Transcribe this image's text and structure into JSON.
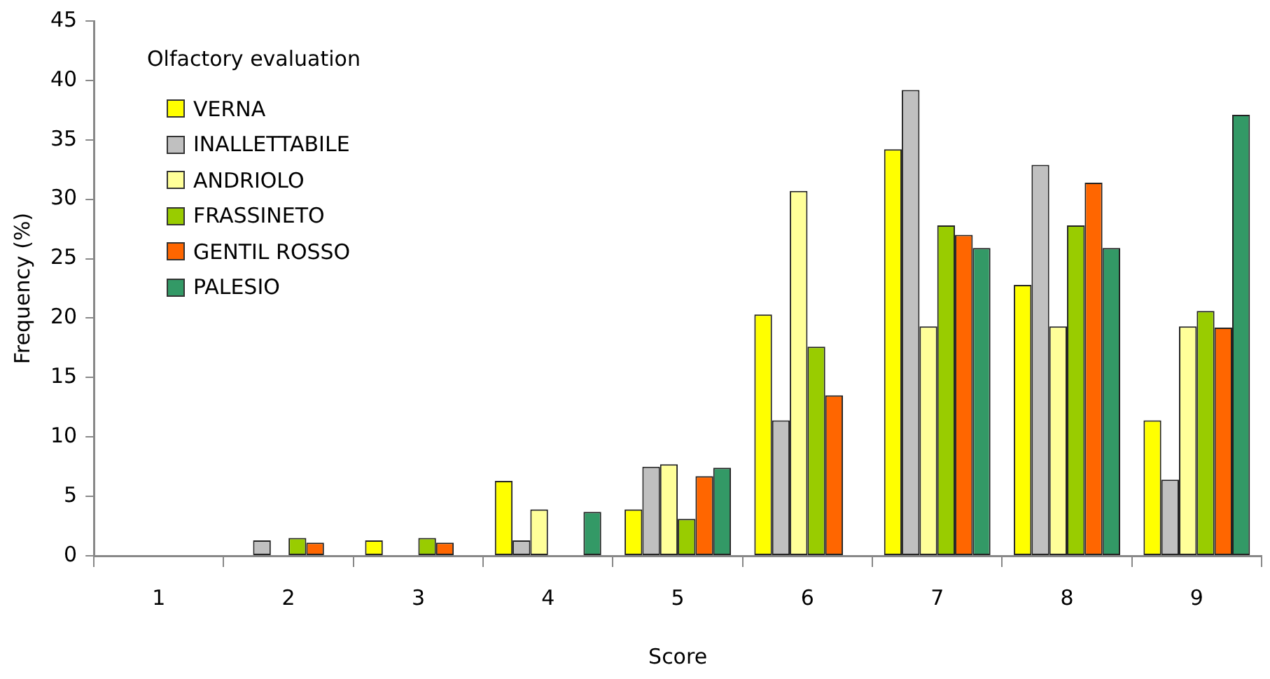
{
  "chart_data": {
    "type": "bar",
    "xlabel": "Score",
    "ylabel": "Frequency (%)",
    "legend_title": "Olfactory evaluation",
    "legend": "top left",
    "grid": false,
    "categories": [
      "1",
      "2",
      "3",
      "4",
      "5",
      "6",
      "7",
      "8",
      "9"
    ],
    "ylim": [
      0,
      45
    ],
    "yticks": [
      0,
      5,
      10,
      15,
      20,
      25,
      30,
      35,
      40,
      45
    ],
    "series": [
      {
        "name": "VERNA",
        "color": "#ffff00",
        "values": [
          0,
          0,
          1.3,
          6.3,
          3.9,
          20.3,
          34.2,
          22.8,
          11.4
        ]
      },
      {
        "name": "INALLETTABILE",
        "color": "#c0c0c0",
        "values": [
          0,
          1.3,
          0,
          1.3,
          7.5,
          11.4,
          39.2,
          32.9,
          6.4
        ]
      },
      {
        "name": "ANDRIOLO",
        "color": "#ffff99",
        "values": [
          0,
          0,
          0,
          3.9,
          7.7,
          30.7,
          19.3,
          19.3,
          19.3
        ]
      },
      {
        "name": "FRASSINETO",
        "color": "#99cc00",
        "values": [
          0,
          1.5,
          1.5,
          0,
          3.1,
          17.6,
          27.8,
          27.8,
          20.6
        ]
      },
      {
        "name": "GENTIL ROSSO",
        "color": "#ff6600",
        "values": [
          0,
          1.1,
          1.1,
          0,
          6.7,
          13.5,
          27.0,
          31.4,
          19.2
        ]
      },
      {
        "name": "PALESIO",
        "color": "#339966",
        "values": [
          0,
          0,
          0,
          3.7,
          7.4,
          0,
          25.9,
          25.9,
          37.1
        ]
      }
    ]
  }
}
